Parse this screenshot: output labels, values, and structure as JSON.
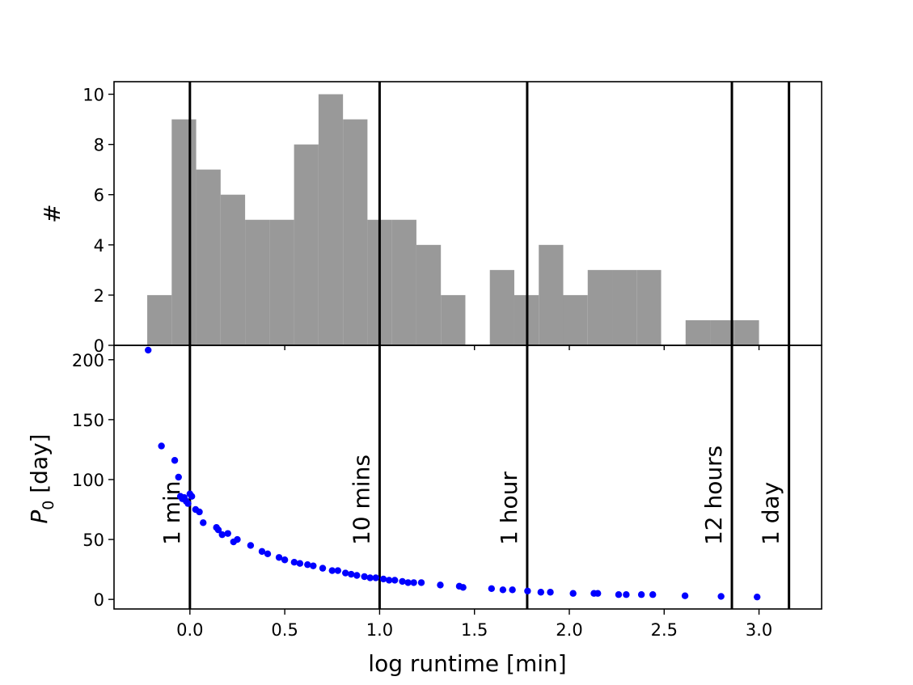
{
  "chart_data": [
    {
      "type": "bar",
      "panel": "top",
      "ylabel": "#",
      "xlim": [
        -0.4,
        3.33
      ],
      "ylim": [
        0,
        10.5
      ],
      "yticks": [
        0,
        2,
        4,
        6,
        8,
        10
      ],
      "ytick_labels": [
        "0",
        "2",
        "4",
        "6",
        "8",
        "10"
      ],
      "grid": false,
      "bin_width": 0.129,
      "bins": [
        {
          "x0": -0.225,
          "count": 2
        },
        {
          "x0": -0.096,
          "count": 9
        },
        {
          "x0": 0.033,
          "count": 7
        },
        {
          "x0": 0.162,
          "count": 6
        },
        {
          "x0": 0.291,
          "count": 5
        },
        {
          "x0": 0.42,
          "count": 5
        },
        {
          "x0": 0.549,
          "count": 8
        },
        {
          "x0": 0.678,
          "count": 10
        },
        {
          "x0": 0.807,
          "count": 9
        },
        {
          "x0": 0.936,
          "count": 5
        },
        {
          "x0": 1.065,
          "count": 5
        },
        {
          "x0": 1.194,
          "count": 4
        },
        {
          "x0": 1.323,
          "count": 2
        },
        {
          "x0": 1.452,
          "count": 0
        },
        {
          "x0": 1.581,
          "count": 3
        },
        {
          "x0": 1.71,
          "count": 2
        },
        {
          "x0": 1.839,
          "count": 4
        },
        {
          "x0": 1.968,
          "count": 2
        },
        {
          "x0": 2.097,
          "count": 3
        },
        {
          "x0": 2.226,
          "count": 3
        },
        {
          "x0": 2.355,
          "count": 3
        },
        {
          "x0": 2.484,
          "count": 0
        },
        {
          "x0": 2.613,
          "count": 1
        },
        {
          "x0": 2.742,
          "count": 1
        },
        {
          "x0": 2.871,
          "count": 1
        }
      ],
      "bar_color": "#999999",
      "vlines": [
        {
          "x": 0.0
        },
        {
          "x": 1.0
        },
        {
          "x": 1.778
        },
        {
          "x": 2.857
        },
        {
          "x": 3.158
        }
      ]
    },
    {
      "type": "scatter",
      "panel": "bottom",
      "ylabel": "P_0 [day]",
      "ylabel_main": "P",
      "ylabel_sub": "0",
      "ylabel_rest": " [day]",
      "xlabel": "log runtime [min]",
      "xlim": [
        -0.4,
        3.33
      ],
      "ylim": [
        -8,
        212
      ],
      "xticks": [
        0.0,
        0.5,
        1.0,
        1.5,
        2.0,
        2.5,
        3.0
      ],
      "xtick_labels": [
        "0.0",
        "0.5",
        "1.0",
        "1.5",
        "2.0",
        "2.5",
        "3.0"
      ],
      "yticks": [
        0,
        50,
        100,
        150,
        200
      ],
      "ytick_labels": [
        "0",
        "50",
        "100",
        "150",
        "200"
      ],
      "grid": false,
      "point_color": "#0000ff",
      "points": [
        [
          -0.22,
          208
        ],
        [
          -0.15,
          128
        ],
        [
          -0.08,
          116
        ],
        [
          -0.06,
          102
        ],
        [
          -0.05,
          86
        ],
        [
          -0.04,
          84
        ],
        [
          -0.03,
          85
        ],
        [
          -0.02,
          82
        ],
        [
          -0.01,
          80
        ],
        [
          0.0,
          88
        ],
        [
          0.01,
          86
        ],
        [
          0.03,
          75
        ],
        [
          0.05,
          73
        ],
        [
          0.07,
          64
        ],
        [
          0.14,
          60
        ],
        [
          0.15,
          58
        ],
        [
          0.17,
          54
        ],
        [
          0.2,
          55
        ],
        [
          0.23,
          48
        ],
        [
          0.25,
          50
        ],
        [
          0.32,
          45
        ],
        [
          0.38,
          40
        ],
        [
          0.41,
          38
        ],
        [
          0.47,
          35
        ],
        [
          0.5,
          33
        ],
        [
          0.55,
          31
        ],
        [
          0.58,
          30
        ],
        [
          0.62,
          29
        ],
        [
          0.65,
          28
        ],
        [
          0.7,
          26
        ],
        [
          0.75,
          24
        ],
        [
          0.78,
          24
        ],
        [
          0.82,
          22
        ],
        [
          0.85,
          21
        ],
        [
          0.88,
          20
        ],
        [
          0.92,
          19
        ],
        [
          0.95,
          18
        ],
        [
          0.98,
          18
        ],
        [
          1.02,
          17
        ],
        [
          1.05,
          16
        ],
        [
          1.08,
          16
        ],
        [
          1.12,
          15
        ],
        [
          1.15,
          14
        ],
        [
          1.18,
          14
        ],
        [
          1.22,
          14
        ],
        [
          1.32,
          12
        ],
        [
          1.42,
          11
        ],
        [
          1.44,
          10
        ],
        [
          1.59,
          9
        ],
        [
          1.65,
          8
        ],
        [
          1.7,
          8
        ],
        [
          1.78,
          7
        ],
        [
          1.85,
          6
        ],
        [
          1.9,
          6
        ],
        [
          2.02,
          5
        ],
        [
          2.13,
          5
        ],
        [
          2.15,
          5
        ],
        [
          2.26,
          4
        ],
        [
          2.3,
          4
        ],
        [
          2.38,
          4
        ],
        [
          2.44,
          4
        ],
        [
          2.61,
          3
        ],
        [
          2.8,
          2.5
        ],
        [
          2.99,
          2
        ]
      ],
      "vlines": [
        {
          "x": 0.0,
          "label": "1 min"
        },
        {
          "x": 1.0,
          "label": "10 mins"
        },
        {
          "x": 1.778,
          "label": "1 hour"
        },
        {
          "x": 2.857,
          "label": "12 hours"
        },
        {
          "x": 3.158,
          "label": "1 day"
        }
      ]
    }
  ]
}
